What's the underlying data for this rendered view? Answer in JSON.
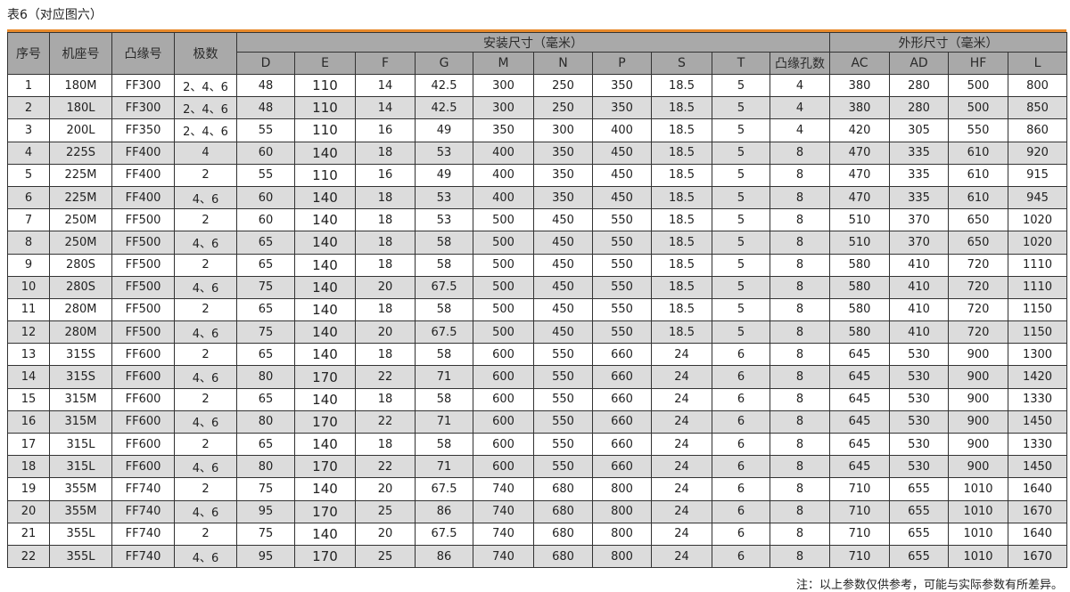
{
  "title": "表6（对应图六）",
  "accent_color": "#e8892a",
  "header": {
    "index": "序号",
    "frame": "机座号",
    "flange": "凸缘号",
    "poles": "极数",
    "install_group": "安装尺寸（毫米）",
    "outline_group": "外形尺寸（毫米）",
    "install_cols": [
      "D",
      "E",
      "F",
      "G",
      "M",
      "N",
      "P",
      "S",
      "T",
      "凸缘孔数"
    ],
    "outline_cols": [
      "AC",
      "AD",
      "HF",
      "L"
    ]
  },
  "rows": [
    [
      "1",
      "180M",
      "FF300",
      "2、4、6",
      "48",
      "110",
      "14",
      "42.5",
      "300",
      "250",
      "350",
      "18.5",
      "5",
      "4",
      "380",
      "280",
      "500",
      "800"
    ],
    [
      "2",
      "180L",
      "FF300",
      "2、4、6",
      "48",
      "110",
      "14",
      "42.5",
      "300",
      "250",
      "350",
      "18.5",
      "5",
      "4",
      "380",
      "280",
      "500",
      "850"
    ],
    [
      "3",
      "200L",
      "FF350",
      "2、4、6",
      "55",
      "110",
      "16",
      "49",
      "350",
      "300",
      "400",
      "18.5",
      "5",
      "4",
      "420",
      "305",
      "550",
      "860"
    ],
    [
      "4",
      "225S",
      "FF400",
      "4",
      "60",
      "140",
      "18",
      "53",
      "400",
      "350",
      "450",
      "18.5",
      "5",
      "8",
      "470",
      "335",
      "610",
      "920"
    ],
    [
      "5",
      "225M",
      "FF400",
      "2",
      "55",
      "110",
      "16",
      "49",
      "400",
      "350",
      "450",
      "18.5",
      "5",
      "8",
      "470",
      "335",
      "610",
      "915"
    ],
    [
      "6",
      "225M",
      "FF400",
      "4、6",
      "60",
      "140",
      "18",
      "53",
      "400",
      "350",
      "450",
      "18.5",
      "5",
      "8",
      "470",
      "335",
      "610",
      "945"
    ],
    [
      "7",
      "250M",
      "FF500",
      "2",
      "60",
      "140",
      "18",
      "53",
      "500",
      "450",
      "550",
      "18.5",
      "5",
      "8",
      "510",
      "370",
      "650",
      "1020"
    ],
    [
      "8",
      "250M",
      "FF500",
      "4、6",
      "65",
      "140",
      "18",
      "58",
      "500",
      "450",
      "550",
      "18.5",
      "5",
      "8",
      "510",
      "370",
      "650",
      "1020"
    ],
    [
      "9",
      "280S",
      "FF500",
      "2",
      "65",
      "140",
      "18",
      "58",
      "500",
      "450",
      "550",
      "18.5",
      "5",
      "8",
      "580",
      "410",
      "720",
      "1110"
    ],
    [
      "10",
      "280S",
      "FF500",
      "4、6",
      "75",
      "140",
      "20",
      "67.5",
      "500",
      "450",
      "550",
      "18.5",
      "5",
      "8",
      "580",
      "410",
      "720",
      "1110"
    ],
    [
      "11",
      "280M",
      "FF500",
      "2",
      "65",
      "140",
      "18",
      "58",
      "500",
      "450",
      "550",
      "18.5",
      "5",
      "8",
      "580",
      "410",
      "720",
      "1150"
    ],
    [
      "12",
      "280M",
      "FF500",
      "4、6",
      "75",
      "140",
      "20",
      "67.5",
      "500",
      "450",
      "550",
      "18.5",
      "5",
      "8",
      "580",
      "410",
      "720",
      "1150"
    ],
    [
      "13",
      "315S",
      "FF600",
      "2",
      "65",
      "140",
      "18",
      "58",
      "600",
      "550",
      "660",
      "24",
      "6",
      "8",
      "645",
      "530",
      "900",
      "1300"
    ],
    [
      "14",
      "315S",
      "FF600",
      "4、6",
      "80",
      "170",
      "22",
      "71",
      "600",
      "550",
      "660",
      "24",
      "6",
      "8",
      "645",
      "530",
      "900",
      "1420"
    ],
    [
      "15",
      "315M",
      "FF600",
      "2",
      "65",
      "140",
      "18",
      "58",
      "600",
      "550",
      "660",
      "24",
      "6",
      "8",
      "645",
      "530",
      "900",
      "1330"
    ],
    [
      "16",
      "315M",
      "FF600",
      "4、6",
      "80",
      "170",
      "22",
      "71",
      "600",
      "550",
      "660",
      "24",
      "6",
      "8",
      "645",
      "530",
      "900",
      "1450"
    ],
    [
      "17",
      "315L",
      "FF600",
      "2",
      "65",
      "140",
      "18",
      "58",
      "600",
      "550",
      "660",
      "24",
      "6",
      "8",
      "645",
      "530",
      "900",
      "1330"
    ],
    [
      "18",
      "315L",
      "FF600",
      "4、6",
      "80",
      "170",
      "22",
      "71",
      "600",
      "550",
      "660",
      "24",
      "6",
      "8",
      "645",
      "530",
      "900",
      "1450"
    ],
    [
      "19",
      "355M",
      "FF740",
      "2",
      "75",
      "140",
      "20",
      "67.5",
      "740",
      "680",
      "800",
      "24",
      "6",
      "8",
      "710",
      "655",
      "1010",
      "1640"
    ],
    [
      "20",
      "355M",
      "FF740",
      "4、6",
      "95",
      "170",
      "25",
      "86",
      "740",
      "680",
      "800",
      "24",
      "6",
      "8",
      "710",
      "655",
      "1010",
      "1670"
    ],
    [
      "21",
      "355L",
      "FF740",
      "2",
      "75",
      "140",
      "20",
      "67.5",
      "740",
      "680",
      "800",
      "24",
      "6",
      "8",
      "710",
      "655",
      "1010",
      "1640"
    ],
    [
      "22",
      "355L",
      "FF740",
      "4、6",
      "95",
      "170",
      "25",
      "86",
      "740",
      "680",
      "800",
      "24",
      "6",
      "8",
      "710",
      "655",
      "1010",
      "1670"
    ]
  ],
  "note": "注：以上参数仅供参考，可能与实际参数有所差异。"
}
